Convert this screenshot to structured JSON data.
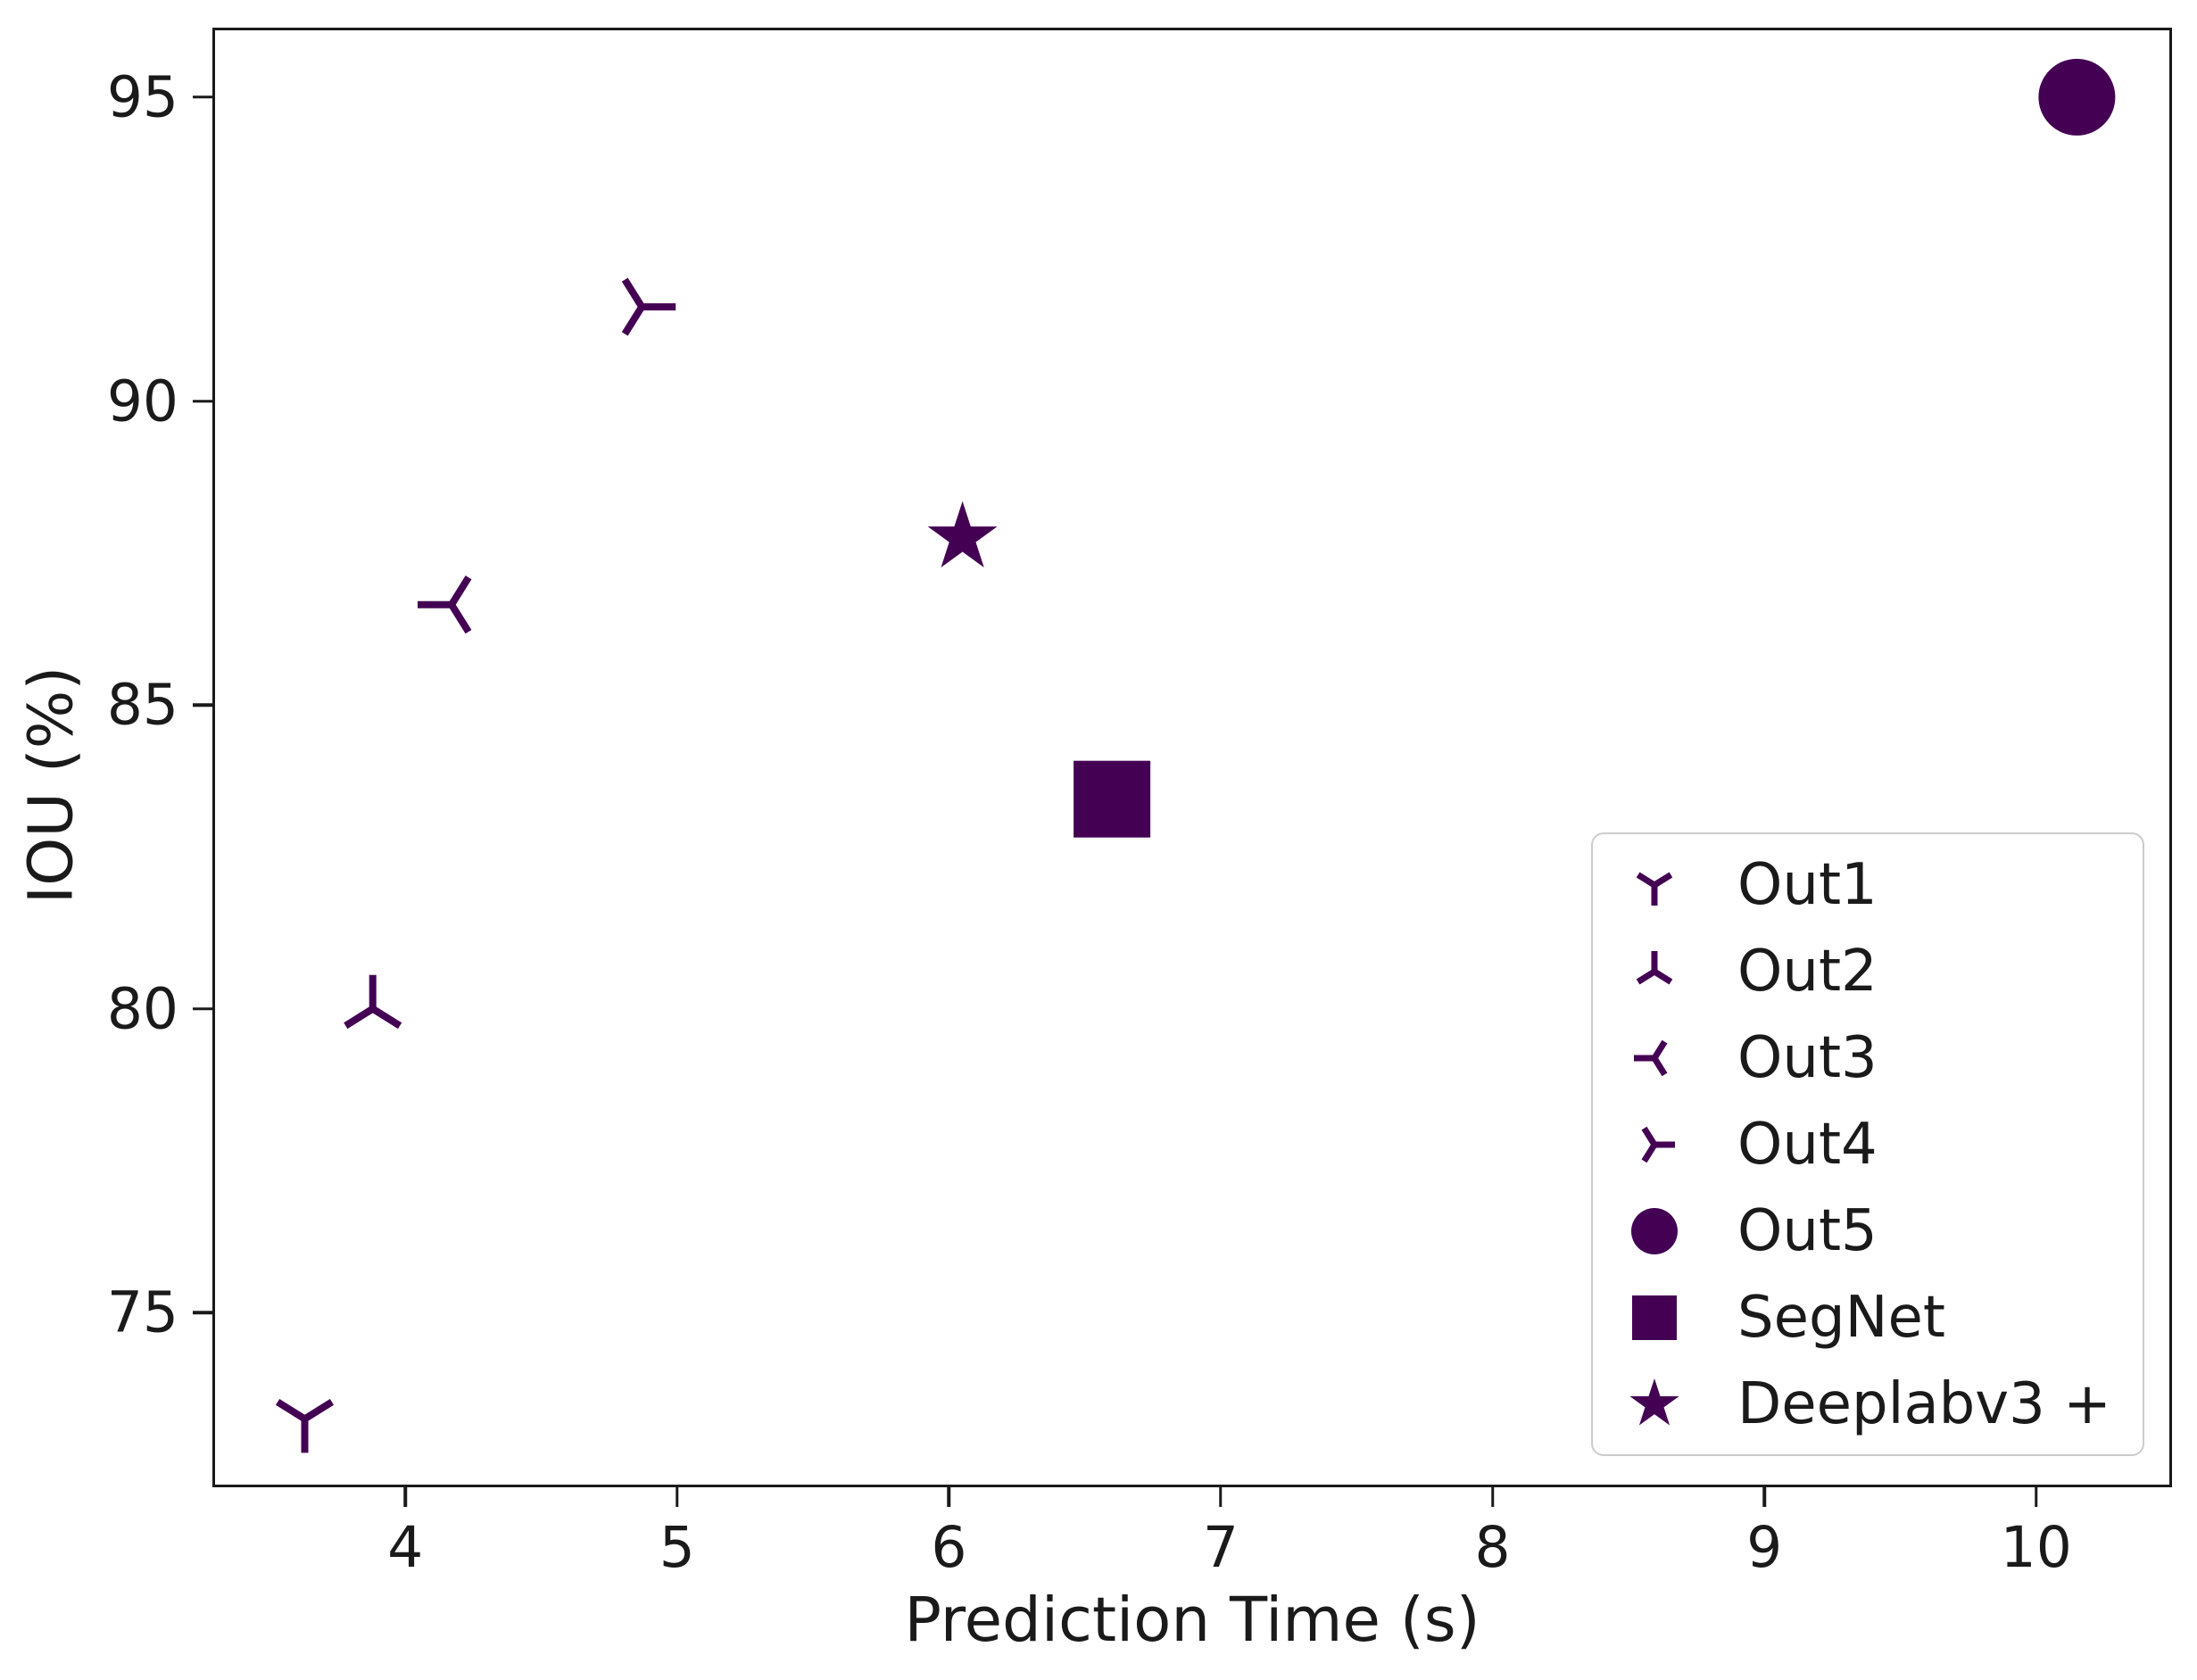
{
  "figure": {
    "background": "#ffffff"
  },
  "chart_data": {
    "type": "scatter",
    "title": "",
    "xlabel": "Prediction Time (s)",
    "ylabel": "IOU (%)",
    "xlim": [
      3.3,
      10.49
    ],
    "ylim": [
      72.17,
      96.1
    ],
    "x_ticks": [
      4,
      5,
      6,
      7,
      8,
      9,
      10
    ],
    "y_ticks": [
      75,
      80,
      85,
      90,
      95
    ],
    "grid": false,
    "legend_position": "lower right",
    "marker_color": "#440154",
    "axis_color": "#1a1a1a",
    "legend_border_color": "#cccccc",
    "series": [
      {
        "name": "Out1",
        "marker": "tri_down",
        "x": 3.63,
        "y": 73.25,
        "size": 38
      },
      {
        "name": "Out2",
        "marker": "tri_up",
        "x": 3.88,
        "y": 80.0,
        "size": 38
      },
      {
        "name": "Out3",
        "marker": "tri_left",
        "x": 4.17,
        "y": 86.65,
        "size": 38
      },
      {
        "name": "Out4",
        "marker": "tri_right",
        "x": 4.87,
        "y": 91.55,
        "size": 38
      },
      {
        "name": "Out5",
        "marker": "circle",
        "x": 10.15,
        "y": 95.0,
        "size": 43
      },
      {
        "name": "SegNet",
        "marker": "square",
        "x": 6.6,
        "y": 83.45,
        "size": 43
      },
      {
        "name": "Deeplabv3 +",
        "marker": "star",
        "x": 6.05,
        "y": 87.75,
        "size": 41
      }
    ]
  }
}
